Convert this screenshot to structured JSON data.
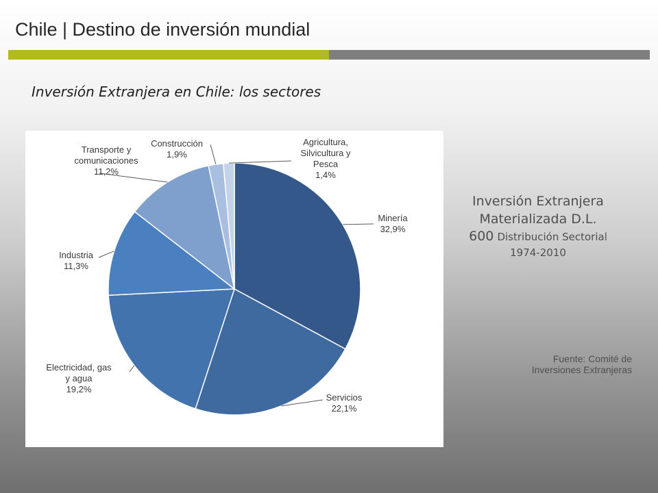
{
  "header": {
    "title": "Chile | Destino de inversión mundial",
    "accent_color": "#b2bb1e",
    "rule_color": "#7f7f7f"
  },
  "subtitle": "Inversión Extranjera en Chile: los sectores",
  "chart_data": {
    "type": "pie",
    "start": "12 o'clock, clockwise",
    "slices": [
      {
        "label": [
          "Minería"
        ],
        "value": 32.9,
        "display": "32,9%",
        "color": "#35588a"
      },
      {
        "label": [
          "Servicios"
        ],
        "value": 22.1,
        "display": "22,1%",
        "color": "#3e6a9f"
      },
      {
        "label": [
          "Electricidad, gas",
          "y agua"
        ],
        "value": 19.2,
        "display": "19,2%",
        "color": "#4273ad"
      },
      {
        "label": [
          "Industria"
        ],
        "value": 11.3,
        "display": "11,3%",
        "color": "#4b80c0"
      },
      {
        "label": [
          "Transporte y",
          "comunicaciones"
        ],
        "value": 11.2,
        "display": "11,2%",
        "color": "#7f9fcc"
      },
      {
        "label": [
          "Construcción"
        ],
        "value": 1.9,
        "display": "1,9%",
        "color": "#a9bfe0"
      },
      {
        "label": [
          "Agricultura,",
          "Silvicultura y",
          "Pesca"
        ],
        "value": 1.4,
        "display": "1,4%",
        "color": "#c5d3ea"
      }
    ]
  },
  "side": {
    "line1": "Inversión Extranjera",
    "line2": "Materializada D.L.",
    "line3_big": "600",
    "line3_small": "Distribución Sectorial",
    "line4": "1974-2010"
  },
  "source": {
    "line1": "Fuente: Comité de",
    "line2": "Inversiones Extranjeras"
  }
}
